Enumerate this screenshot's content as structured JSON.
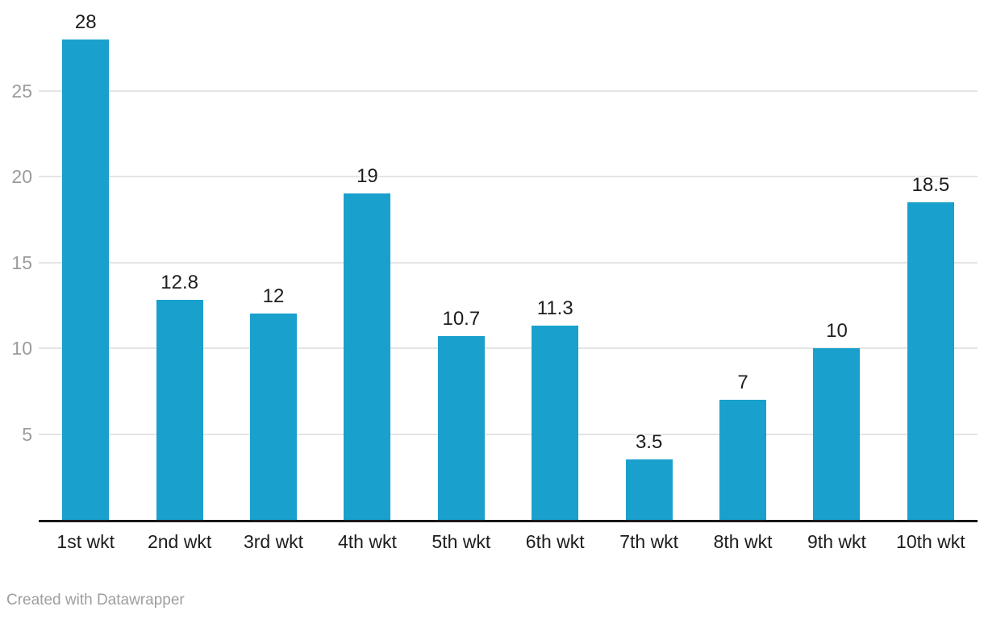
{
  "chart_data": {
    "type": "bar",
    "categories": [
      "1st wkt",
      "2nd wkt",
      "3rd wkt",
      "4th wkt",
      "5th wkt",
      "6th wkt",
      "7th wkt",
      "8th wkt",
      "9th wkt",
      "10th wkt"
    ],
    "values": [
      28,
      12.8,
      12,
      19,
      10.7,
      11.3,
      3.5,
      7,
      10,
      18.5
    ],
    "value_labels": [
      "28",
      "12.8",
      "12",
      "19",
      "10.7",
      "11.3",
      "3.5",
      "7",
      "10",
      "18.5"
    ],
    "title": "",
    "xlabel": "",
    "ylabel": "",
    "ylim": [
      0,
      28
    ],
    "yticks": [
      5,
      10,
      15,
      20,
      25
    ],
    "grid": true,
    "legend": "none",
    "bar_color": "#1aa0cd"
  },
  "colors": {
    "bar": "#1aa0cd",
    "axis_line": "#191919",
    "gridline": "#e4e4e4",
    "tick_label": "#9b9b9b",
    "category_label": "#1d1d1d",
    "value_label": "#1d1d1d",
    "credit": "#9e9e9e",
    "background": "#ffffff"
  },
  "footer": {
    "credit": "Created with Datawrapper"
  }
}
